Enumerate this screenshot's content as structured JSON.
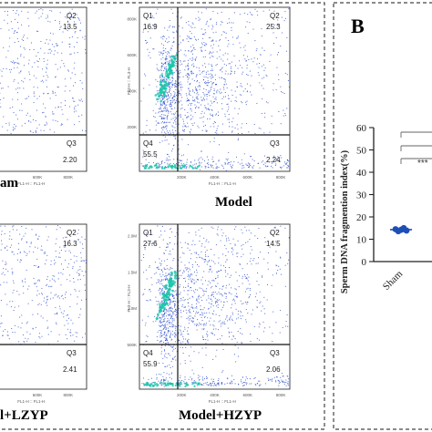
{
  "panel_b_label": "B",
  "chart_data": [
    {
      "type": "scatter",
      "title": "Sham",
      "title_visible": "am",
      "quadrants": [
        {
          "name": "Q2",
          "value": "13.5"
        },
        {
          "name": "Q3",
          "value": "2.20"
        }
      ],
      "x_ticks": [
        "600K",
        "800K"
      ],
      "xlabel": "FL1-H :: FL1-H"
    },
    {
      "type": "scatter",
      "title": "Model",
      "quadrants": [
        {
          "name": "Q1",
          "value": "16.9"
        },
        {
          "name": "Q2",
          "value": "25.3"
        },
        {
          "name": "Q4",
          "value": "55.5"
        },
        {
          "name": "Q3",
          "value": "2.24"
        }
      ],
      "x_ticks": [
        "200K",
        "400K",
        "600K",
        "800K"
      ],
      "y_ticks": [
        "800K",
        "600K",
        "400K",
        "200K"
      ],
      "ylabel": "FL3-H :: FL3-H",
      "xlabel": "FL1-H :: FL1-H"
    },
    {
      "type": "scatter",
      "title": "Model+LZYP",
      "title_visible": "l+LZYP",
      "quadrants": [
        {
          "name": "Q2",
          "value": "16.3"
        },
        {
          "name": "Q3",
          "value": "2.41"
        }
      ],
      "x_ticks": [
        "600K",
        "800K"
      ],
      "xlabel": "FL1-H :: FL1-H"
    },
    {
      "type": "scatter",
      "title": "Model+HZYP",
      "quadrants": [
        {
          "name": "Q1",
          "value": "27.6"
        },
        {
          "name": "Q2",
          "value": "14.5"
        },
        {
          "name": "Q4",
          "value": "55.9"
        },
        {
          "name": "Q3",
          "value": "2.06"
        }
      ],
      "x_ticks": [
        "200K",
        "400K",
        "600K",
        "800K"
      ],
      "y_ticks": [
        "2.0M",
        "1.5M",
        "1.0M",
        "500K"
      ],
      "ylabel": "FL3-H :: FL3-H",
      "xlabel": "FL1-H :: FL1-H"
    },
    {
      "type": "scatter",
      "title": "",
      "ylabel": "Sperm DNA fragmention index(%)",
      "ylim": [
        0,
        60
      ],
      "y_ticks": [
        0,
        10,
        20,
        30,
        40,
        50,
        60
      ],
      "categories": [
        "Sham"
      ],
      "values": [
        [
          14.5,
          13.6,
          14.2,
          15.0,
          13.9,
          14.4
        ]
      ],
      "mean": [
        14.3
      ],
      "significance": [
        "***"
      ],
      "point_color": "#1f4fb5"
    }
  ],
  "colors": {
    "dot": "#1a3cc8",
    "dense": "#19c8a8",
    "panel_border": "#444444"
  }
}
